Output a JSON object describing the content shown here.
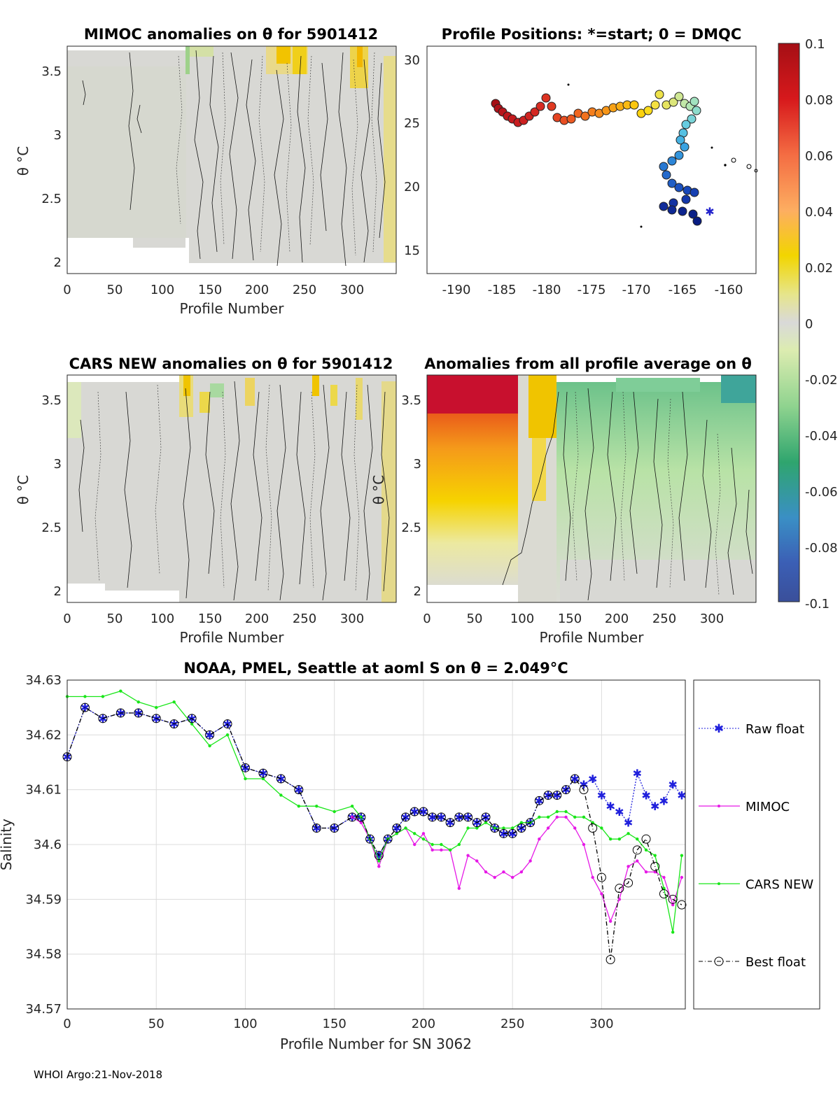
{
  "panels": {
    "mimoc": {
      "title": "MIMOC anomalies on θ  for 5901412",
      "xlabel": "Profile Number",
      "ylabel": "θ °C",
      "xticks": [
        "0",
        "50",
        "100",
        "150",
        "200",
        "250",
        "300"
      ],
      "yticks": [
        "3.5",
        "3",
        "2.5",
        "2"
      ]
    },
    "positions": {
      "title": "Profile Positions: *=start; 0 = DMQC",
      "xticks": [
        "-190",
        "-185",
        "-180",
        "-175",
        "-170",
        "-165",
        "-160"
      ],
      "yticks": [
        "30",
        "25",
        "20",
        "15"
      ]
    },
    "cars": {
      "title": "CARS NEW anomalies on θ for 5901412",
      "xlabel": "Profile Number",
      "ylabel": "θ °C",
      "xticks": [
        "0",
        "50",
        "100",
        "150",
        "200",
        "250",
        "300"
      ],
      "yticks": [
        "3.5",
        "3",
        "2.5",
        "2"
      ]
    },
    "average": {
      "title": "Anomalies from all profile average on θ",
      "xlabel": "Profile Number",
      "ylabel": "θ °C",
      "xticks": [
        "0",
        "50",
        "100",
        "150",
        "200",
        "250",
        "300"
      ],
      "yticks": [
        "3.5",
        "3",
        "2.5",
        "2"
      ]
    }
  },
  "colorbar": {
    "ticks": [
      "0.1",
      "0.08",
      "0.06",
      "0.04",
      "0.02",
      "0",
      "-0.02",
      "-0.04",
      "-0.06",
      "-0.08",
      "-0.1"
    ],
    "range": [
      -0.1,
      0.1
    ]
  },
  "chart_data": {
    "type": "line",
    "title": "NOAA, PMEL, Seattle at aoml S on θ = 2.049°C",
    "xlabel": "Profile Number for SN 3062",
    "ylabel": "Salinity",
    "xlim": [
      0,
      347
    ],
    "ylim": [
      34.57,
      34.63
    ],
    "xticks": [
      "0",
      "50",
      "100",
      "150",
      "200",
      "250",
      "300"
    ],
    "yticks": [
      "34.63",
      "34.62",
      "34.61",
      "34.6",
      "34.59",
      "34.58",
      "34.57"
    ],
    "x": [
      0,
      10,
      20,
      30,
      40,
      50,
      60,
      70,
      80,
      90,
      100,
      110,
      120,
      130,
      140,
      150,
      160,
      165,
      170,
      175,
      180,
      185,
      190,
      195,
      200,
      205,
      210,
      215,
      220,
      225,
      230,
      235,
      240,
      245,
      250,
      255,
      260,
      265,
      270,
      275,
      280,
      285,
      290,
      295,
      300,
      305,
      310,
      315,
      320,
      325,
      330,
      335,
      340,
      345
    ],
    "series": [
      {
        "name": "Raw float",
        "color": "#1f1fdc",
        "values": [
          34.616,
          34.625,
          34.623,
          34.624,
          34.624,
          34.623,
          34.622,
          34.623,
          34.62,
          34.622,
          34.614,
          34.613,
          34.612,
          34.61,
          34.603,
          34.603,
          34.605,
          34.605,
          34.601,
          34.598,
          34.601,
          34.603,
          34.605,
          34.606,
          34.606,
          34.605,
          34.605,
          34.604,
          34.605,
          34.605,
          34.604,
          34.605,
          34.603,
          34.602,
          34.602,
          34.603,
          34.604,
          34.608,
          34.609,
          34.609,
          34.61,
          34.612,
          34.611,
          34.612,
          34.609,
          34.607,
          34.606,
          34.604,
          34.613,
          34.609,
          34.607,
          34.608,
          34.611,
          34.609
        ]
      },
      {
        "name": "MIMOC",
        "color": "#e619e6",
        "values": [
          null,
          null,
          null,
          null,
          null,
          null,
          null,
          null,
          null,
          null,
          null,
          null,
          null,
          null,
          null,
          null,
          34.605,
          34.604,
          34.601,
          34.596,
          34.601,
          34.602,
          34.603,
          34.6,
          34.602,
          34.599,
          34.599,
          34.599,
          34.592,
          34.598,
          34.597,
          34.595,
          34.594,
          34.595,
          34.594,
          34.595,
          34.597,
          34.601,
          34.603,
          34.605,
          34.605,
          34.603,
          34.6,
          34.594,
          34.591,
          34.586,
          34.59,
          34.596,
          34.597,
          34.595,
          34.595,
          34.594,
          34.589,
          34.594
        ]
      },
      {
        "name": "CARS NEW",
        "color": "#19e619",
        "values": [
          34.627,
          34.627,
          34.627,
          34.628,
          34.626,
          34.625,
          34.626,
          34.622,
          34.618,
          34.62,
          34.612,
          34.612,
          34.609,
          34.607,
          34.607,
          34.606,
          34.607,
          34.605,
          34.601,
          34.597,
          34.601,
          34.602,
          34.603,
          34.602,
          34.601,
          34.6,
          34.6,
          34.599,
          34.6,
          34.603,
          34.603,
          34.604,
          34.603,
          34.603,
          34.603,
          34.604,
          34.604,
          34.605,
          34.605,
          34.606,
          34.606,
          34.605,
          34.605,
          34.604,
          34.603,
          34.601,
          34.601,
          34.602,
          34.601,
          34.599,
          34.598,
          34.592,
          34.584,
          34.598
        ]
      },
      {
        "name": "Best float",
        "color": "#000000",
        "values": [
          34.616,
          34.625,
          34.623,
          34.624,
          34.624,
          34.623,
          34.622,
          34.623,
          34.62,
          34.622,
          34.614,
          34.613,
          34.612,
          34.61,
          34.603,
          34.603,
          34.605,
          34.605,
          34.601,
          34.598,
          34.601,
          34.603,
          34.605,
          34.606,
          34.606,
          34.605,
          34.605,
          34.604,
          34.605,
          34.605,
          34.604,
          34.605,
          34.603,
          34.602,
          34.602,
          34.603,
          34.604,
          34.608,
          34.609,
          34.609,
          34.61,
          34.612,
          34.61,
          34.603,
          34.594,
          34.579,
          34.592,
          34.593,
          34.599,
          34.601,
          34.596,
          34.591,
          34.59,
          34.589
        ]
      }
    ]
  },
  "footer": "WHOI Argo:21-Nov-2018"
}
